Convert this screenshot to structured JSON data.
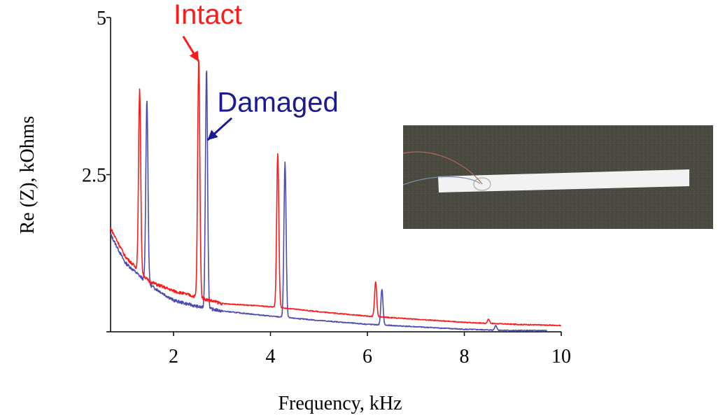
{
  "chart_data": {
    "type": "line",
    "title": "",
    "xlabel": "Frequency, kHz",
    "ylabel": "Re (Z), kOhms",
    "xlim": [
      0.7,
      10
    ],
    "ylim": [
      0,
      5
    ],
    "xticks": [
      2,
      4,
      6,
      8,
      10
    ],
    "yticks": [
      0,
      2.5,
      5
    ],
    "ytick_labels": [
      "",
      "2.5",
      "5"
    ],
    "grid": false,
    "colors": {
      "Intact": "#ff1a1a",
      "Damaged": "#4b4bb0"
    },
    "series": [
      {
        "name": "Intact",
        "baseline": [
          [
            0.7,
            1.65
          ],
          [
            1.0,
            1.2
          ],
          [
            1.5,
            0.8
          ],
          [
            2.0,
            0.65
          ],
          [
            2.5,
            0.55
          ],
          [
            3.0,
            0.45
          ],
          [
            4.0,
            0.4
          ],
          [
            5.0,
            0.32
          ],
          [
            6.0,
            0.25
          ],
          [
            7.0,
            0.2
          ],
          [
            8.0,
            0.15
          ],
          [
            9.0,
            0.12
          ],
          [
            10.0,
            0.1
          ]
        ],
        "peaks": [
          [
            1.3,
            3.85
          ],
          [
            2.52,
            4.35
          ],
          [
            4.15,
            2.85
          ],
          [
            6.17,
            0.8
          ],
          [
            8.5,
            0.2
          ]
        ]
      },
      {
        "name": "Damaged",
        "baseline": [
          [
            0.7,
            1.55
          ],
          [
            1.0,
            1.1
          ],
          [
            1.5,
            0.75
          ],
          [
            2.0,
            0.5
          ],
          [
            2.5,
            0.4
          ],
          [
            3.0,
            0.33
          ],
          [
            4.0,
            0.25
          ],
          [
            5.0,
            0.18
          ],
          [
            6.0,
            0.12
          ],
          [
            7.0,
            0.08
          ],
          [
            8.0,
            0.04
          ],
          [
            9.0,
            0.02
          ],
          [
            9.7,
            0.02
          ]
        ],
        "peaks": [
          [
            1.45,
            3.7
          ],
          [
            2.68,
            4.2
          ],
          [
            4.3,
            2.7
          ],
          [
            6.3,
            0.68
          ],
          [
            8.65,
            0.1
          ]
        ]
      }
    ],
    "annotations": [
      {
        "text": "Intact",
        "color": "#ff1a1a",
        "label_at": [
          2.0,
          4.9
        ],
        "arrow_from": [
          2.2,
          4.7
        ],
        "arrow_to": [
          2.52,
          4.3
        ]
      },
      {
        "text": "Damaged",
        "color": "#1a1a99",
        "label_at": [
          2.9,
          3.5
        ],
        "arrow_from": [
          3.2,
          3.4
        ],
        "arrow_to": [
          2.7,
          3.05
        ]
      }
    ],
    "inset_photo": {
      "background": "#4a4a40",
      "strip": "#f2f2f2"
    }
  }
}
